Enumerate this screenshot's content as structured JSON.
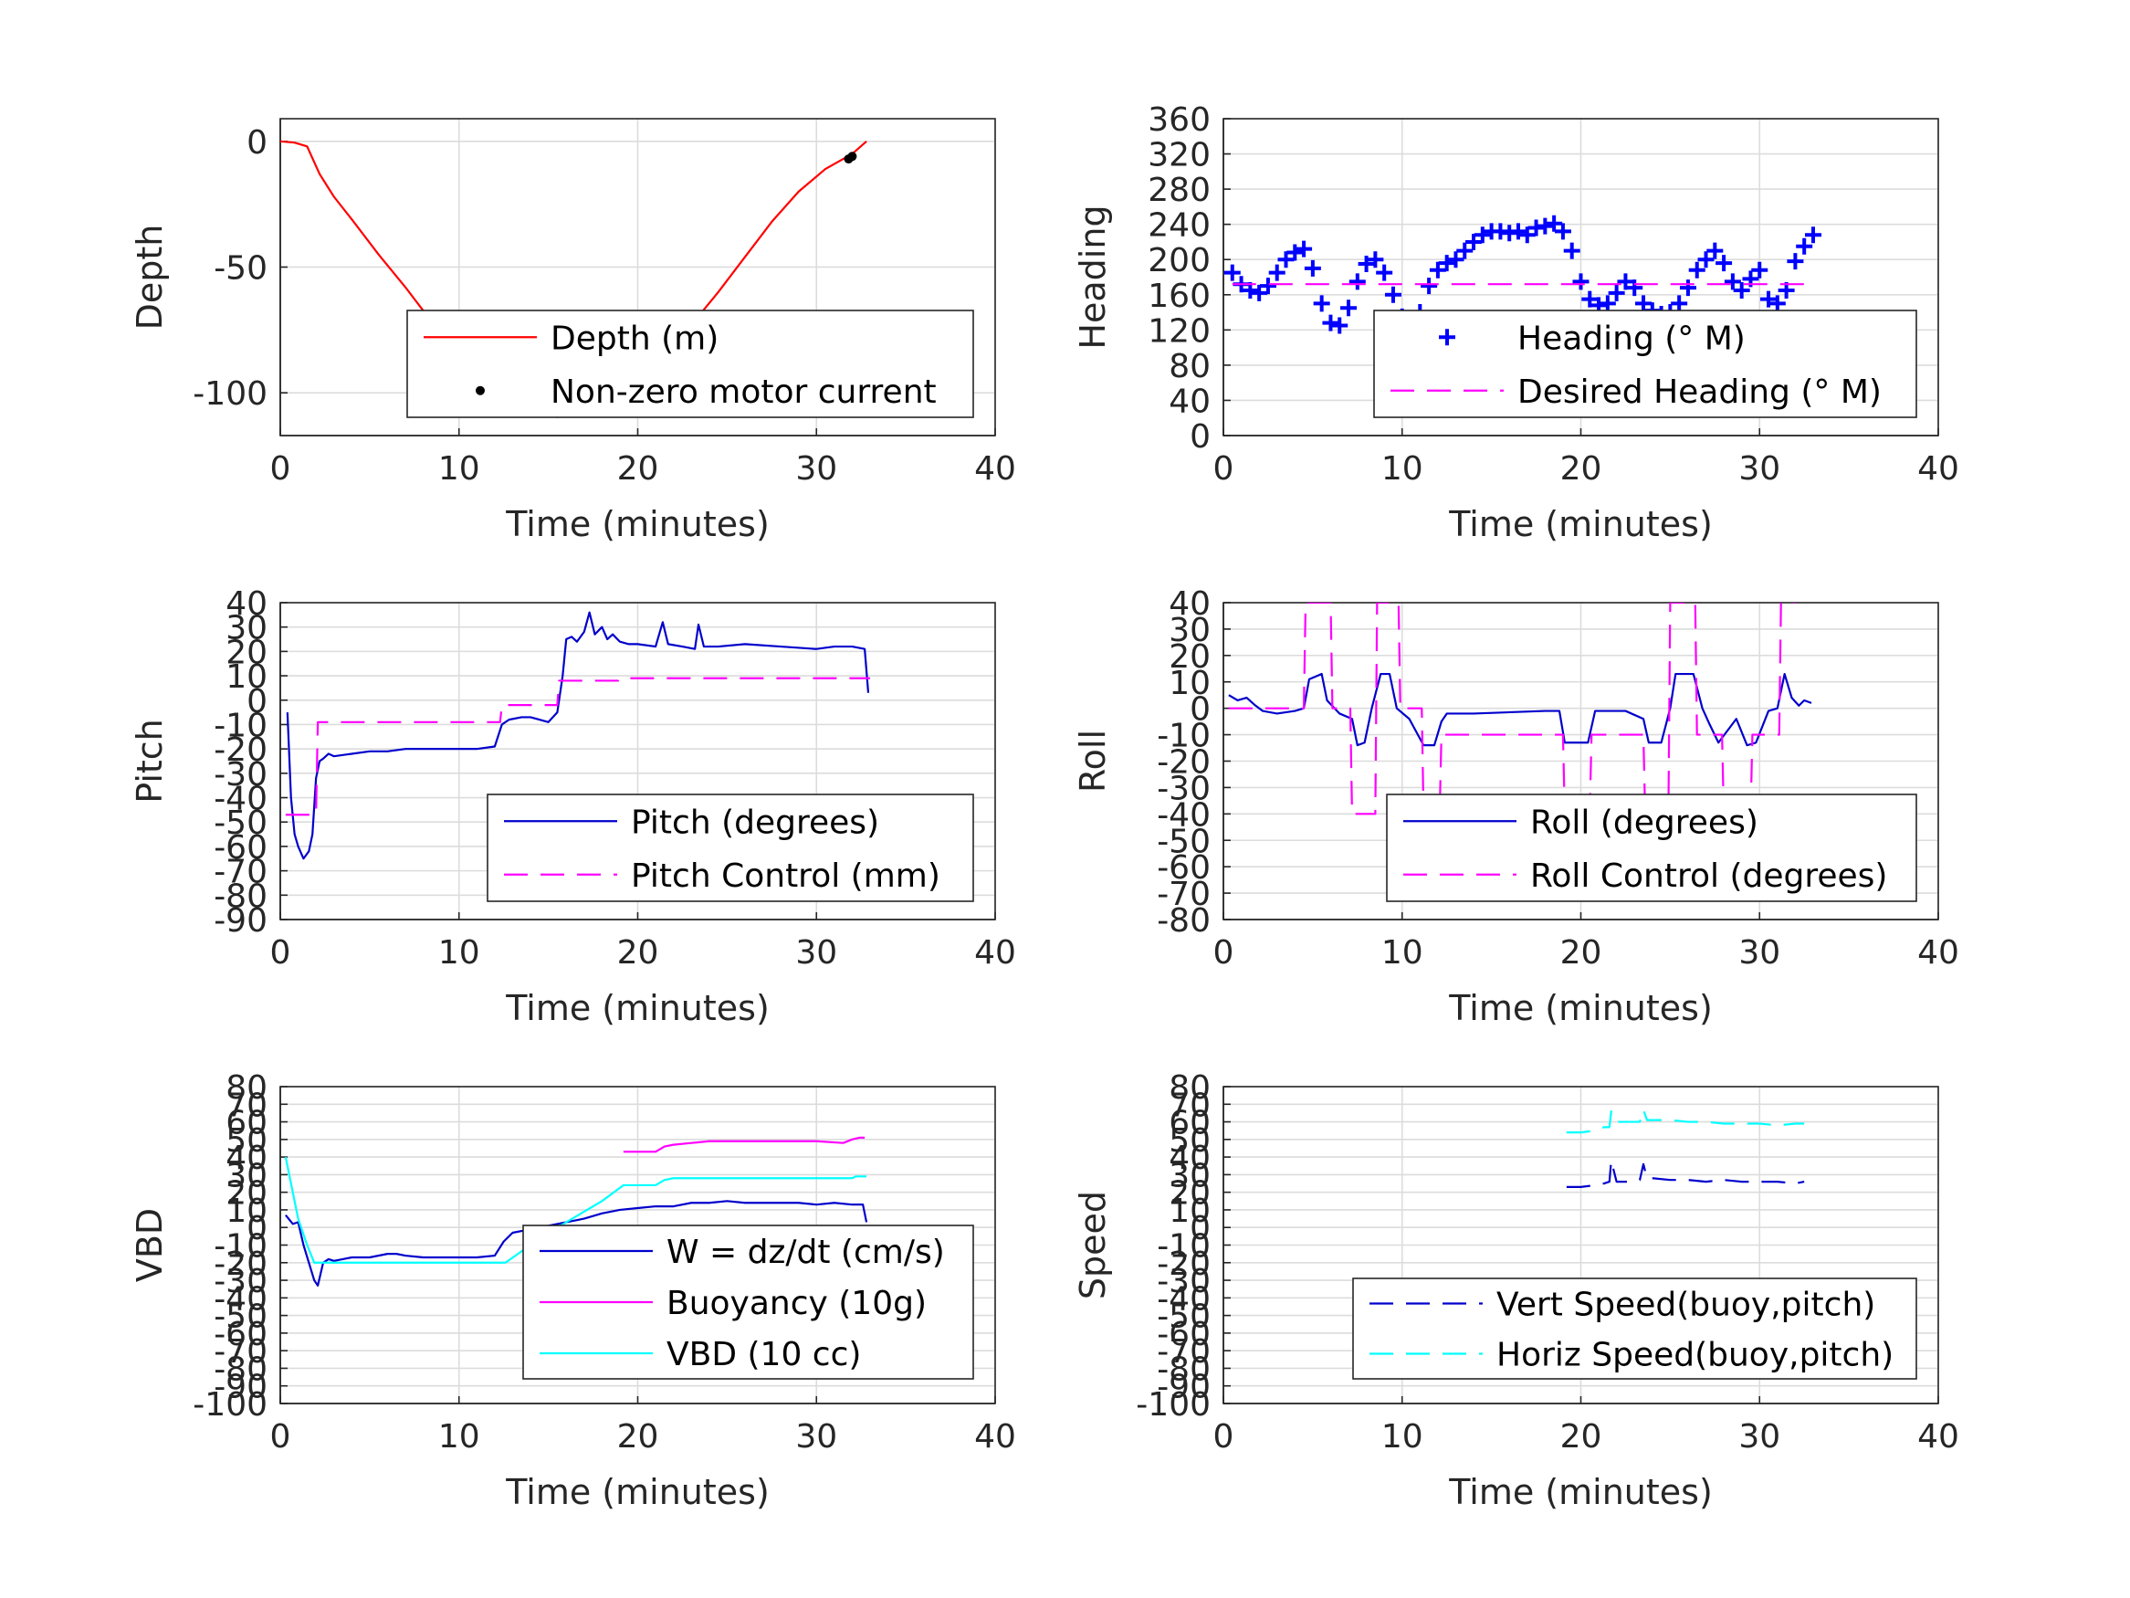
{
  "chart_data": [
    {
      "type": "line",
      "title": "",
      "xlabel": "Time (minutes)",
      "ylabel": "Depth",
      "xlim": [
        0,
        40
      ],
      "ylim": [
        -117,
        9
      ],
      "xticks": [
        0,
        10,
        20,
        30,
        40
      ],
      "yticks": [
        0,
        -50,
        -100
      ],
      "grid": true,
      "legend": "bottom-right",
      "series": [
        {
          "name": "Depth (m)",
          "kind": "line",
          "color": "#ff0000",
          "x": [
            0,
            0.8,
            1.5,
            2.2,
            3,
            4,
            5.5,
            7,
            8.5,
            10,
            11.5,
            13,
            14,
            15,
            15.7,
            16.5,
            17.5,
            18.5,
            20,
            21.5,
            23,
            24.5,
            26,
            27.5,
            29,
            30.5,
            32,
            32.8
          ],
          "y": [
            0,
            -0.5,
            -2,
            -13,
            -22,
            -31,
            -45,
            -58,
            -72,
            -84,
            -95,
            -104,
            -106.5,
            -108,
            -108.2,
            -107,
            -104,
            -100,
            -93,
            -84,
            -73,
            -60,
            -46,
            -32,
            -20,
            -11,
            -5,
            0
          ]
        },
        {
          "name": "Non-zero motor current",
          "kind": "scatter",
          "color": "#000000",
          "x": [
            11.1,
            12.7,
            13.1,
            13.5,
            13.9,
            14.3,
            14.7,
            15.1,
            15.5,
            16.2,
            16.6,
            17,
            17.4,
            17.8,
            18.2,
            18.6,
            21.1,
            21.4,
            23.4,
            31.8,
            32
          ],
          "y": [
            -99,
            -104,
            -105,
            -106,
            -106.7,
            -107.3,
            -107.8,
            -108.1,
            -108.2,
            -107.8,
            -107,
            -106,
            -105,
            -103.5,
            -102.2,
            -101,
            -85,
            -83,
            -72,
            -7,
            -6
          ]
        }
      ]
    },
    {
      "type": "line",
      "title": "",
      "xlabel": "Time (minutes)",
      "ylabel": "Heading",
      "xlim": [
        0,
        40
      ],
      "ylim": [
        0,
        360
      ],
      "xticks": [
        0,
        10,
        20,
        30,
        40
      ],
      "yticks": [
        0,
        40,
        80,
        120,
        160,
        200,
        240,
        280,
        320,
        360
      ],
      "grid": true,
      "legend": "bottom-right",
      "series": [
        {
          "name": "Heading (° M)",
          "kind": "plus",
          "color": "#0000ff",
          "x": [
            0.5,
            1,
            1.5,
            2,
            2.5,
            3,
            3.5,
            4,
            4.5,
            5,
            5.5,
            6,
            6.5,
            7,
            7.5,
            8,
            8.5,
            9,
            9.5,
            10,
            10.5,
            11,
            11.5,
            12,
            12.5,
            13,
            13.5,
            14,
            14.5,
            15,
            15.5,
            16,
            16.5,
            17,
            17.5,
            18,
            18.5,
            19,
            19.5,
            20,
            20.5,
            21,
            21.5,
            22,
            22.5,
            23,
            23.5,
            24,
            24.5,
            25,
            25.5,
            26,
            26.5,
            27,
            27.5,
            28,
            28.5,
            29,
            29.5,
            30,
            30.5,
            31,
            31.5,
            32,
            32.5,
            33
          ],
          "y": [
            185,
            172,
            165,
            162,
            170,
            185,
            200,
            208,
            212,
            190,
            150,
            128,
            125,
            145,
            175,
            195,
            200,
            185,
            160,
            135,
            128,
            140,
            170,
            188,
            196,
            200,
            210,
            220,
            228,
            232,
            232,
            230,
            232,
            228,
            236,
            238,
            241,
            232,
            210,
            175,
            155,
            148,
            150,
            162,
            175,
            168,
            150,
            142,
            138,
            140,
            150,
            168,
            188,
            200,
            210,
            196,
            175,
            165,
            178,
            188,
            155,
            150,
            165,
            198,
            215,
            228
          ]
        },
        {
          "name": "Desired Heading (° M)",
          "kind": "dash",
          "color": "#ff00ff",
          "x": [
            0.5,
            33
          ],
          "y": [
            172,
            172
          ]
        }
      ]
    },
    {
      "type": "line",
      "title": "",
      "xlabel": "Time (minutes)",
      "ylabel": "Pitch",
      "xlim": [
        0,
        40
      ],
      "ylim": [
        -90,
        40
      ],
      "xticks": [
        0,
        10,
        20,
        30,
        40
      ],
      "yticks": [
        40,
        30,
        20,
        10,
        0,
        -10,
        -20,
        -30,
        -40,
        -50,
        -60,
        -70,
        -80,
        -90
      ],
      "grid": true,
      "legend": "bottom-right",
      "series": [
        {
          "name": "Pitch (degrees)",
          "kind": "line",
          "color": "#0000cc",
          "x": [
            0.4,
            0.6,
            0.8,
            1,
            1.3,
            1.6,
            1.8,
            2,
            2.2,
            2.4,
            2.7,
            3,
            4,
            5,
            6,
            7,
            8,
            9,
            10,
            11,
            12,
            12.4,
            12.8,
            13.5,
            14,
            14.5,
            15,
            15.5,
            15.8,
            16,
            16.3,
            16.6,
            17,
            17.3,
            17.6,
            18,
            18.3,
            18.6,
            19,
            19.5,
            20,
            21,
            21.4,
            21.7,
            22.5,
            23.2,
            23.4,
            23.7,
            24.5,
            26,
            28,
            30,
            31,
            32,
            32.7,
            32.9
          ],
          "y": [
            -5,
            -40,
            -55,
            -60,
            -65,
            -62,
            -55,
            -32,
            -25,
            -24,
            -22,
            -23,
            -22,
            -21,
            -21,
            -20,
            -20,
            -20,
            -20,
            -20,
            -19,
            -10,
            -8,
            -7,
            -7,
            -8,
            -9,
            -5,
            10,
            25,
            26,
            24,
            28,
            36,
            27,
            30,
            25,
            27,
            24,
            23,
            23,
            22,
            32,
            23,
            22,
            21,
            31,
            22,
            22,
            23,
            22,
            21,
            22,
            22,
            21,
            3
          ]
        },
        {
          "name": "Pitch Control (mm)",
          "kind": "dash",
          "color": "#ff00ff",
          "x": [
            0.3,
            2,
            2.1,
            12.3,
            12.4,
            15.5,
            15.6,
            18.9,
            19,
            33
          ],
          "y": [
            -47,
            -47,
            -9,
            -9,
            -2,
            -2,
            8,
            8,
            9,
            9
          ]
        }
      ]
    },
    {
      "type": "line",
      "title": "",
      "xlabel": "Time (minutes)",
      "ylabel": "Roll",
      "xlim": [
        0,
        40
      ],
      "ylim": [
        -80,
        40
      ],
      "xticks": [
        0,
        10,
        20,
        30,
        40
      ],
      "yticks": [
        40,
        30,
        20,
        10,
        0,
        -10,
        -20,
        -30,
        -40,
        -50,
        -60,
        -70,
        -80
      ],
      "grid": true,
      "legend": "bottom-right",
      "series": [
        {
          "name": "Roll (degrees)",
          "kind": "line",
          "color": "#0000cc",
          "x": [
            0.3,
            0.8,
            1.3,
            1.8,
            2.2,
            3,
            4,
            4.5,
            4.8,
            5.5,
            5.8,
            6.5,
            7.2,
            7.5,
            7.9,
            8.3,
            8.8,
            9.3,
            9.7,
            10.4,
            11.2,
            11.8,
            12.2,
            12.5,
            14,
            18,
            18.8,
            19.1,
            20.4,
            20.8,
            22.5,
            23.5,
            23.8,
            24.5,
            25,
            25.3,
            26.3,
            26.8,
            27.2,
            27.7,
            28.7,
            29.3,
            29.8,
            30.5,
            31,
            31.4,
            31.8,
            32.2,
            32.5,
            32.9
          ],
          "y": [
            5,
            3,
            4,
            1,
            -1,
            -2,
            -1,
            0,
            11,
            13,
            3,
            -2,
            -4,
            -14,
            -13,
            0,
            13,
            13,
            0,
            -4,
            -14,
            -14,
            -5,
            -2,
            -2,
            -1,
            -1,
            -13,
            -13,
            -1,
            -1,
            -4,
            -13,
            -13,
            0,
            13,
            13,
            0,
            -6,
            -13,
            -4,
            -14,
            -13,
            -1,
            0,
            13,
            4,
            1,
            3,
            2
          ]
        },
        {
          "name": "Roll Control (degrees)",
          "kind": "dash",
          "color": "#ff00ff",
          "x": [
            0.3,
            4.5,
            4.6,
            6,
            6.1,
            7.1,
            7.2,
            8.5,
            8.6,
            9.8,
            9.9,
            11.1,
            11.2,
            12.1,
            12.2,
            19,
            19.1,
            20.5,
            20.6,
            23.5,
            23.6,
            24.9,
            25,
            26.4,
            26.5,
            27.9,
            28,
            29.5,
            29.6,
            31.1,
            31.2,
            32
          ],
          "y": [
            0,
            0,
            40,
            40,
            0,
            0,
            -40,
            -40,
            40,
            40,
            0,
            0,
            -40,
            -40,
            -10,
            -10,
            -40,
            -40,
            -10,
            -10,
            -40,
            -40,
            40,
            40,
            -10,
            -10,
            -40,
            -40,
            -10,
            -10,
            40,
            40
          ]
        }
      ]
    },
    {
      "type": "line",
      "title": "",
      "xlabel": "Time (minutes)",
      "ylabel": "VBD",
      "xlim": [
        0,
        40
      ],
      "ylim": [
        -100,
        80
      ],
      "xticks": [
        0,
        10,
        20,
        30,
        40
      ],
      "yticks": [
        80,
        70,
        60,
        50,
        40,
        30,
        20,
        10,
        0,
        -10,
        -20,
        -30,
        -40,
        -50,
        -60,
        -70,
        -80,
        -90,
        -100
      ],
      "grid": true,
      "legend": "bottom-right",
      "series": [
        {
          "name": "W = dz/dt (cm/s)",
          "kind": "line",
          "color": "#0000cc",
          "x": [
            0.3,
            0.7,
            1,
            1.3,
            1.6,
            1.9,
            2.1,
            2.4,
            2.7,
            3,
            3.5,
            4,
            5,
            6,
            6.5,
            7,
            8,
            9,
            10,
            11,
            12,
            12.5,
            13,
            14,
            15,
            16,
            17,
            18,
            19,
            20,
            21,
            22,
            23,
            24,
            25,
            26,
            27,
            28,
            29,
            30,
            31,
            32,
            32.6,
            32.8
          ],
          "y": [
            7,
            2,
            3,
            -10,
            -20,
            -30,
            -33,
            -20,
            -18,
            -19,
            -18,
            -17,
            -17,
            -15,
            -15,
            -16,
            -17,
            -17,
            -17,
            -17,
            -16,
            -8,
            -3,
            -1,
            1,
            3,
            5,
            8,
            10,
            11,
            12,
            12,
            14,
            14,
            15,
            14,
            14,
            14,
            14,
            13,
            14,
            13,
            13,
            3
          ]
        },
        {
          "name": "Buoyancy (10g)",
          "kind": "line",
          "color": "#ff00ff",
          "x": [
            19.2,
            21,
            21.5,
            22,
            23,
            24,
            26,
            28,
            30,
            31.5,
            32,
            32.4,
            32.7
          ],
          "y": [
            43,
            43,
            46,
            47,
            48,
            49,
            49,
            49,
            49,
            48,
            50,
            51,
            51
          ]
        },
        {
          "name": "VBD (10 cc)",
          "kind": "line",
          "color": "#00ffff",
          "x": [
            0.3,
            0.6,
            1,
            1.5,
            1.9,
            2.2,
            5,
            8,
            10,
            12,
            12.6,
            14,
            16,
            18,
            19.2,
            21,
            21.5,
            22,
            24,
            28,
            32,
            32.2,
            32.8
          ],
          "y": [
            40,
            25,
            5,
            -10,
            -20,
            -20,
            -20,
            -20,
            -20,
            -20,
            -20,
            -10,
            3,
            15,
            24,
            24,
            27,
            28,
            28,
            28,
            28,
            29,
            29
          ]
        }
      ]
    },
    {
      "type": "line",
      "title": "",
      "xlabel": "Time (minutes)",
      "ylabel": "Speed",
      "xlim": [
        0,
        40
      ],
      "ylim": [
        -100,
        80
      ],
      "xticks": [
        0,
        10,
        20,
        30,
        40
      ],
      "yticks": [
        80,
        70,
        60,
        50,
        40,
        30,
        20,
        10,
        0,
        -10,
        -20,
        -30,
        -40,
        -50,
        -60,
        -70,
        -80,
        -90,
        -100
      ],
      "grid": true,
      "legend": "bottom-right",
      "series": [
        {
          "name": "Vert Speed(buoy,pitch)",
          "kind": "dash",
          "color": "#0000cc",
          "x": [
            19.2,
            20,
            20.8,
            21.3,
            21.6,
            21.7,
            22,
            23,
            23.3,
            23.5,
            23.7,
            24,
            25,
            26,
            27,
            28,
            29,
            30,
            31,
            32,
            32.5
          ],
          "y": [
            23,
            23,
            24,
            25,
            26,
            38,
            26,
            26,
            27,
            36,
            28,
            28,
            27,
            27,
            26,
            27,
            26,
            26,
            26,
            25,
            26
          ]
        },
        {
          "name": "Horiz Speed(buoy,pitch)",
          "kind": "dash",
          "color": "#00ffff",
          "x": [
            19.2,
            20,
            20.8,
            21.3,
            21.6,
            21.7,
            22,
            23,
            23.3,
            23.5,
            23.7,
            24,
            25,
            26,
            27,
            28,
            29,
            30,
            31,
            32,
            32.5
          ],
          "y": [
            54,
            54,
            55,
            57,
            57,
            66,
            60,
            60,
            60,
            67,
            61,
            61,
            61,
            60,
            60,
            59,
            59,
            59,
            58,
            59,
            59
          ]
        }
      ]
    }
  ]
}
